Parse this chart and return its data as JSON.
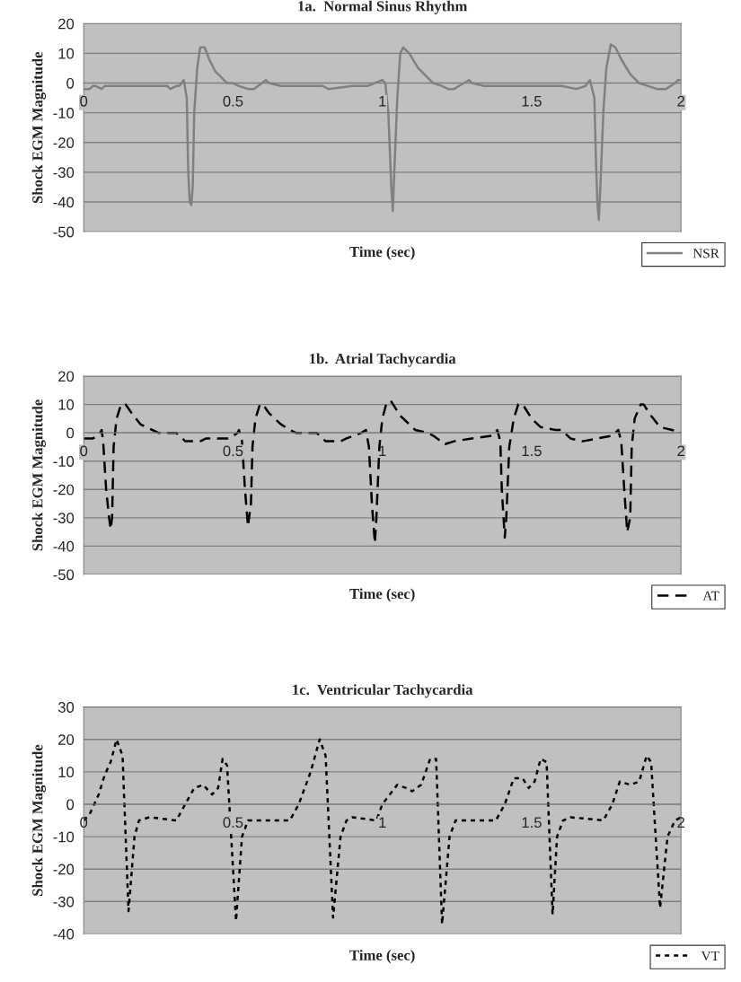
{
  "chart_data": [
    {
      "type": "line",
      "title": "1a.  Normal Sinus Rhythm",
      "xlabel": "Time (sec)",
      "ylabel": "Shock EGM Magnitude",
      "xlim": [
        0,
        2
      ],
      "ylim": [
        -50,
        20
      ],
      "xticks": [
        0,
        0.5,
        1,
        1.5,
        2
      ],
      "yticks": [
        -50,
        -40,
        -30,
        -20,
        -10,
        0,
        10,
        20
      ],
      "grid": "y",
      "legend": "bottom right",
      "line_style": "solid",
      "series": [
        {
          "name": "NSR",
          "color": "#808080",
          "x": [
            0,
            0.02,
            0.03,
            0.04,
            0.06,
            0.07,
            0.28,
            0.29,
            0.31,
            0.32,
            0.335,
            0.345,
            0.35,
            0.355,
            0.36,
            0.365,
            0.37,
            0.38,
            0.39,
            0.405,
            0.42,
            0.44,
            0.46,
            0.48,
            0.5,
            0.52,
            0.55,
            0.57,
            0.61,
            0.62,
            0.66,
            0.8,
            0.82,
            0.9,
            0.95,
            1.0,
            1.01,
            1.02,
            1.03,
            1.035,
            1.04,
            1.05,
            1.06,
            1.07,
            1.09,
            1.12,
            1.15,
            1.17,
            1.2,
            1.22,
            1.24,
            1.29,
            1.3,
            1.34,
            1.6,
            1.65,
            1.68,
            1.695,
            1.71,
            1.715,
            1.72,
            1.725,
            1.73,
            1.74,
            1.75,
            1.765,
            1.78,
            1.8,
            1.83,
            1.86,
            1.89,
            1.92,
            1.95,
            1.98,
            1.99,
            2
          ],
          "values": [
            -2,
            -2,
            -1,
            -1,
            -2,
            -1,
            -1,
            -2,
            -1,
            -1,
            1,
            -5,
            -30,
            -40,
            -41,
            -35,
            -10,
            5,
            12,
            12,
            8,
            4,
            2,
            0,
            0,
            -1,
            -2,
            -2,
            1,
            0,
            -1,
            -1,
            -2,
            -1,
            -1,
            1,
            0,
            -10,
            -35,
            -43,
            -30,
            -5,
            10,
            12,
            10,
            5,
            2,
            0,
            -1,
            -2,
            -2,
            1,
            0,
            -1,
            -1,
            -2,
            -1,
            1,
            -5,
            -25,
            -40,
            -46,
            -35,
            -10,
            5,
            13,
            12,
            8,
            3,
            0,
            -1,
            -2,
            -2,
            0,
            1,
            1
          ]
        }
      ]
    },
    {
      "type": "line",
      "title": "1b.  Atrial Tachycardia",
      "xlabel": "Time (sec)",
      "ylabel": "Shock EGM Magnitude",
      "xlim": [
        0,
        2
      ],
      "ylim": [
        -50,
        20
      ],
      "xticks": [
        0,
        0.5,
        1,
        1.5,
        2
      ],
      "yticks": [
        -50,
        -40,
        -30,
        -20,
        -10,
        0,
        10,
        20
      ],
      "grid": "y",
      "legend": "bottom right",
      "line_style": "dashed",
      "series": [
        {
          "name": "AT",
          "color": "#000000",
          "x": [
            0,
            0.03,
            0.05,
            0.06,
            0.065,
            0.075,
            0.085,
            0.09,
            0.095,
            0.1,
            0.11,
            0.125,
            0.14,
            0.16,
            0.19,
            0.21,
            0.25,
            0.31,
            0.34,
            0.39,
            0.41,
            0.49,
            0.515,
            0.52,
            0.53,
            0.54,
            0.55,
            0.56,
            0.565,
            0.575,
            0.59,
            0.6,
            0.62,
            0.66,
            0.69,
            0.71,
            0.78,
            0.81,
            0.86,
            0.88,
            0.93,
            0.945,
            0.955,
            0.965,
            0.975,
            0.98,
            0.99,
            1.0,
            1.015,
            1.03,
            1.06,
            1.09,
            1.11,
            1.15,
            1.17,
            1.21,
            1.24,
            1.3,
            1.37,
            1.385,
            1.395,
            1.4,
            1.41,
            1.415,
            1.425,
            1.44,
            1.455,
            1.47,
            1.5,
            1.53,
            1.58,
            1.6,
            1.63,
            1.67,
            1.72,
            1.77,
            1.79,
            1.8,
            1.81,
            1.82,
            1.83,
            1.835,
            1.845,
            1.865,
            1.875,
            1.9,
            1.93,
            1.97,
            2
          ],
          "values": [
            -2,
            -2,
            -1,
            1,
            -3,
            -20,
            -30,
            -34,
            -30,
            -5,
            5,
            10,
            10,
            7,
            3,
            2,
            0,
            0,
            -3,
            -3,
            -2,
            -2,
            0,
            1,
            -3,
            -20,
            -33,
            -25,
            -5,
            5,
            10,
            10,
            7,
            3,
            1,
            0,
            0,
            -3,
            -3,
            -2,
            0,
            1,
            -5,
            -25,
            -39,
            -30,
            -5,
            5,
            11,
            11,
            6,
            3,
            1,
            0,
            -1,
            -4,
            -3,
            -2,
            -1,
            1,
            -3,
            -20,
            -37,
            -30,
            -5,
            5,
            10,
            10,
            5,
            2,
            1,
            1,
            -2,
            -3,
            -2,
            -1,
            1,
            -3,
            -20,
            -35,
            -30,
            -5,
            5,
            10,
            10,
            6,
            2,
            1,
            0
          ]
        }
      ]
    },
    {
      "type": "line",
      "title": "1c.  Ventricular Tachycardia",
      "xlabel": "Time (sec)",
      "ylabel": "Shock EGM Magnitude",
      "xlim": [
        0,
        2
      ],
      "ylim": [
        -40,
        30
      ],
      "xticks": [
        0,
        0.5,
        1,
        1.5,
        2
      ],
      "yticks": [
        -40,
        -30,
        -20,
        -10,
        0,
        10,
        20,
        30
      ],
      "grid": "y",
      "legend": "bottom right",
      "line_style": "dotted",
      "series": [
        {
          "name": "VT",
          "color": "#000000",
          "x": [
            0,
            0.02,
            0.05,
            0.07,
            0.09,
            0.11,
            0.13,
            0.15,
            0.17,
            0.185,
            0.22,
            0.31,
            0.34,
            0.37,
            0.4,
            0.43,
            0.45,
            0.465,
            0.48,
            0.51,
            0.53,
            0.55,
            0.69,
            0.72,
            0.76,
            0.79,
            0.81,
            0.835,
            0.86,
            0.88,
            0.9,
            0.98,
            1.0,
            1.05,
            1.08,
            1.1,
            1.13,
            1.16,
            1.18,
            1.2,
            1.225,
            1.245,
            1.38,
            1.41,
            1.44,
            1.47,
            1.49,
            1.51,
            1.53,
            1.55,
            1.57,
            1.585,
            1.605,
            1.63,
            1.74,
            1.77,
            1.795,
            1.83,
            1.86,
            1.885,
            1.9,
            1.93,
            1.955,
            1.98,
            2
          ],
          "values": [
            -5,
            -3,
            3,
            9,
            13,
            20,
            15,
            -33,
            -10,
            -5,
            -4,
            -5,
            0,
            5,
            6,
            3,
            5,
            14,
            12,
            -36,
            -10,
            -5,
            -5,
            0,
            10,
            20,
            15,
            -35,
            -10,
            -5,
            -4,
            -5,
            0,
            6,
            5,
            4,
            6,
            14,
            14,
            -37,
            -10,
            -5,
            -5,
            0,
            8,
            8,
            5,
            7,
            14,
            13,
            -34,
            -10,
            -5,
            -4,
            -5,
            0,
            7,
            6,
            7,
            15,
            13,
            -32,
            -10,
            -5,
            -4
          ]
        }
      ]
    }
  ]
}
